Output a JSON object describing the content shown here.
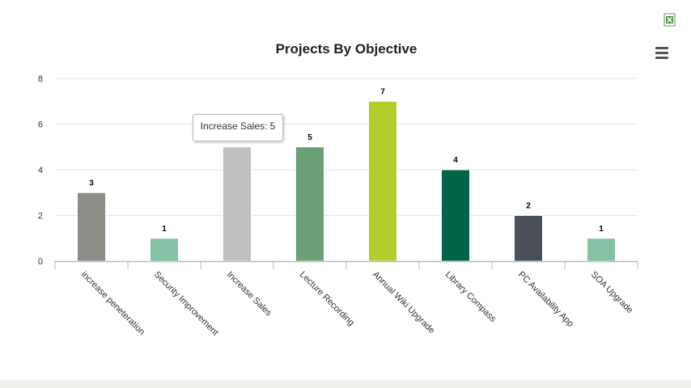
{
  "chart_data": {
    "type": "bar",
    "title": "Projects By Objective",
    "categories": [
      "increase peneteration",
      "Security Improvement",
      "Increase Sales",
      "Lecture Recording",
      "Annual Wiki Upgrade",
      "Library Compass",
      "PC Availability App",
      "SOA Upgrade"
    ],
    "values": [
      3,
      1,
      5,
      5,
      7,
      4,
      2,
      1
    ],
    "colors": [
      "#8a8e86",
      "#84c2a3",
      "#c0c0c0",
      "#6b9f76",
      "#b5cd2c",
      "#006449",
      "#4b4f58",
      "#84c2a3"
    ],
    "yticks": [
      0,
      2,
      4,
      6,
      8
    ],
    "ylim": [
      0,
      8
    ],
    "grid": true,
    "legend": "none"
  },
  "tooltip": {
    "text": "Increase Sales: 5"
  },
  "icons": {
    "export": "excel-icon",
    "menu": "hamburger-menu-icon"
  }
}
